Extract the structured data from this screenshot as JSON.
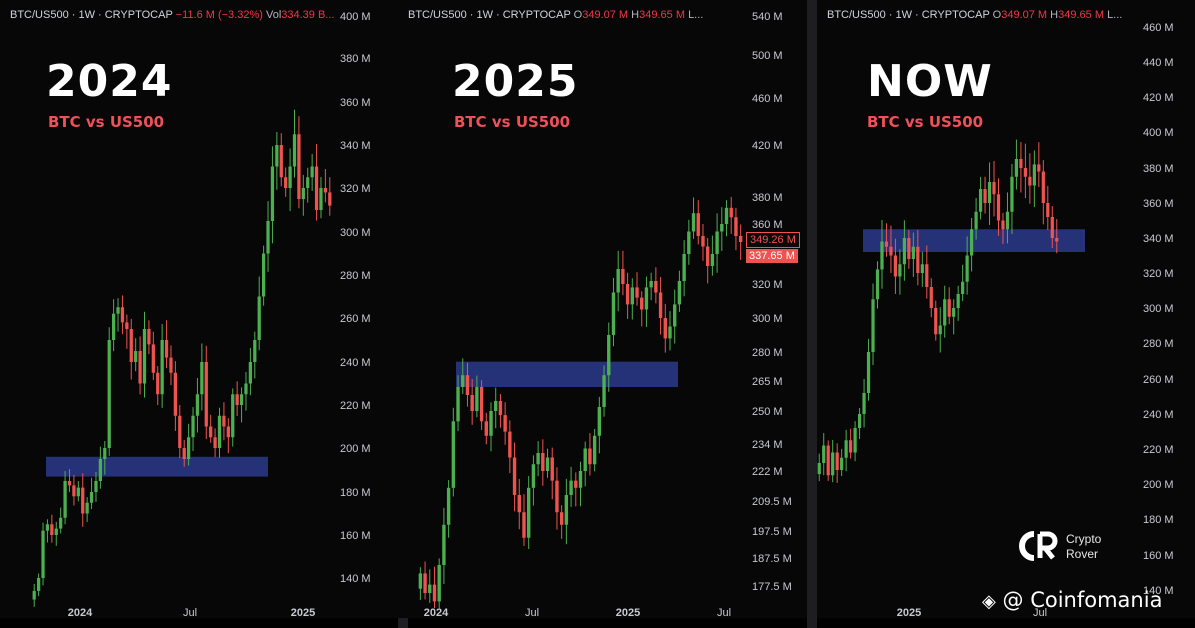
{
  "panels": [
    {
      "header": {
        "symbol": "BTC/US500 · 1W · CRYPTOCAP",
        "change": "−11.6 M (−3.32%)",
        "vol_label": "Vol",
        "vol_value": "334.39 B..."
      },
      "big_title": "2024",
      "subtitle": "BTC vs US500",
      "chart_data": {
        "type": "candlestick",
        "title": "2024",
        "subtitle": "BTC vs US500",
        "y_ticks": [
          "140 M",
          "160 M",
          "180 M",
          "200 M",
          "220 M",
          "240 M",
          "260 M",
          "280 M",
          "300 M",
          "320 M",
          "340 M",
          "360 M",
          "380 M",
          "400 M"
        ],
        "x_ticks": [
          "2024",
          "Jul",
          "2025"
        ],
        "ylim": [
          128,
          402
        ],
        "zone": {
          "low": 187,
          "high": 196
        },
        "closes": [
          134,
          140,
          162,
          165,
          160,
          163,
          168,
          185,
          183,
          178,
          182,
          170,
          175,
          180,
          185,
          195,
          200,
          250,
          262,
          265,
          258,
          255,
          240,
          245,
          230,
          255,
          248,
          235,
          225,
          250,
          242,
          235,
          215,
          200,
          195,
          205,
          215,
          225,
          240,
          210,
          205,
          200,
          215,
          210,
          205,
          225,
          220,
          225,
          230,
          240,
          250,
          270,
          290,
          305,
          330,
          340,
          325,
          320,
          330,
          345,
          315,
          320,
          325,
          330,
          310,
          320,
          318,
          312
        ]
      }
    },
    {
      "header": {
        "symbol": "BTC/US500 · 1W · CRYPTOCAP",
        "o_label": "O",
        "o_value": "349.07 M",
        "h_label": "H",
        "h_value": "349.65 M",
        "more": "L..."
      },
      "big_title": "2025",
      "subtitle": "BTC vs US500",
      "price_tags": [
        "349.26 M",
        "337.65 M"
      ],
      "chart_data": {
        "type": "candlestick",
        "title": "2025",
        "subtitle": "BTC vs US500",
        "y_scale": "log",
        "y_ticks": [
          "177.5 M",
          "187.5 M",
          "197.5 M",
          "209.5 M",
          "222 M",
          "234 M",
          "250 M",
          "265 M",
          "280 M",
          "300 M",
          "320 M",
          "360 M",
          "380 M",
          "420 M",
          "460 M",
          "500 M",
          "540 M"
        ],
        "x_ticks": [
          "2024",
          "Jul",
          "2025",
          "Jul"
        ],
        "ylim": [
          172,
          555
        ],
        "zone": {
          "low": 262,
          "high": 275
        },
        "closes": [
          182,
          175,
          178,
          172,
          185,
          200,
          215,
          245,
          262,
          268,
          258,
          250,
          262,
          245,
          238,
          250,
          255,
          248,
          240,
          228,
          212,
          205,
          195,
          215,
          225,
          230,
          222,
          228,
          218,
          205,
          200,
          212,
          218,
          215,
          222,
          232,
          225,
          238,
          252,
          268,
          290,
          315,
          330,
          320,
          308,
          318,
          312,
          305,
          318,
          322,
          315,
          300,
          288,
          295,
          308,
          322,
          340,
          355,
          368,
          352,
          345,
          332,
          340,
          355,
          360,
          372,
          365,
          352,
          348
        ]
      }
    },
    {
      "header": {
        "symbol": "BTC/US500 · 1W · CRYPTOCAP",
        "o_label": "O",
        "o_value": "349.07 M",
        "h_label": "H",
        "h_value": "349.65 M",
        "more": "L..."
      },
      "big_title": "NOW",
      "subtitle": "BTC vs US500",
      "chart_data": {
        "type": "candlestick",
        "title": "NOW",
        "subtitle": "BTC vs US500",
        "y_ticks": [
          "140 M",
          "160 M",
          "180 M",
          "200 M",
          "220 M",
          "240 M",
          "260 M",
          "280 M",
          "300 M",
          "320 M",
          "340 M",
          "360 M",
          "380 M",
          "400 M",
          "420 M",
          "440 M",
          "460 M"
        ],
        "x_ticks": [
          "2025",
          "Jul"
        ],
        "ylim": [
          136,
          470
        ],
        "zone": {
          "low": 332,
          "high": 345
        },
        "closes": [
          212,
          222,
          205,
          218,
          208,
          215,
          225,
          218,
          232,
          240,
          252,
          275,
          305,
          322,
          338,
          335,
          330,
          318,
          325,
          340,
          328,
          335,
          320,
          325,
          312,
          300,
          285,
          290,
          305,
          295,
          300,
          308,
          315,
          330,
          345,
          355,
          368,
          360,
          372,
          365,
          350,
          345,
          355,
          375,
          385,
          380,
          375,
          370,
          382,
          378,
          360,
          352,
          340,
          338
        ]
      }
    }
  ],
  "brand": {
    "name_line1": "Crypto",
    "name_line2": "Rover"
  },
  "watermark": {
    "text": "@ Coinfomania"
  },
  "colors": {
    "up": "#26a69a",
    "down": "#ef5350",
    "zone": "#2a3a8c",
    "up_green": "#4caf50"
  }
}
